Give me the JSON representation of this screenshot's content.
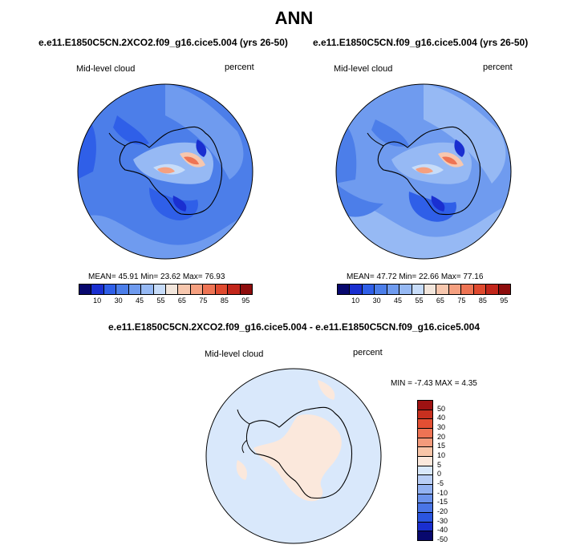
{
  "page": {
    "title": "ANN",
    "diff_title": "e.e11.E1850C5CN.2XCO2.f09_g16.cice5.004 - e.e11.E1850C5CN.f09_g16.cice5.004"
  },
  "panels": [
    {
      "case_title": "e.e11.E1850C5CN.2XCO2.f09_g16.cice5.004 (yrs 26-50)",
      "field_label": "Mid-level cloud",
      "units_label": "percent",
      "stats_text": "MEAN=  45.91   Min=  23.62   Max=  76.93",
      "mean": 45.91,
      "min": 23.62,
      "max": 76.93
    },
    {
      "case_title": "e.e11.E1850C5CN.f09_g16.cice5.004 (yrs 26-50)",
      "field_label": "Mid-level cloud",
      "units_label": "percent",
      "stats_text": "MEAN=  47.72   Min=  22.66   Max=  77.16",
      "mean": 47.72,
      "min": 22.66,
      "max": 77.16
    }
  ],
  "diff_panel": {
    "field_label": "Mid-level cloud",
    "units_label": "percent",
    "stats_text": "MIN =  -7.43 MAX =   4.35",
    "min": -7.43,
    "max": 4.35
  },
  "colorbar_abs": {
    "colors": [
      "#08086e",
      "#1a2fd0",
      "#2f5fe8",
      "#4c7ee9",
      "#6f9bef",
      "#96b9f4",
      "#c7dcf9",
      "#f2e6dc",
      "#f7c7ae",
      "#f5a080",
      "#ee7454",
      "#df4a2f",
      "#c2261b",
      "#8e0d0d"
    ],
    "labels": [
      "10",
      "30",
      "45",
      "55",
      "65",
      "75",
      "85",
      "95"
    ]
  },
  "colorbar_diff": {
    "colors": [
      "#08086e",
      "#1a2fd0",
      "#2b55e0",
      "#4a75e6",
      "#6c93ec",
      "#93b2f2",
      "#b9cef6",
      "#d9e8fb",
      "#fbe8dc",
      "#f8c5a8",
      "#f39a7b",
      "#ee7354",
      "#e34f33",
      "#c8301f",
      "#9e1212"
    ],
    "labels": [
      "-50",
      "-40",
      "-30",
      "-20",
      "-15",
      "-10",
      "-5",
      "0",
      "5",
      "10",
      "15",
      "20",
      "30",
      "40",
      "50"
    ]
  }
}
